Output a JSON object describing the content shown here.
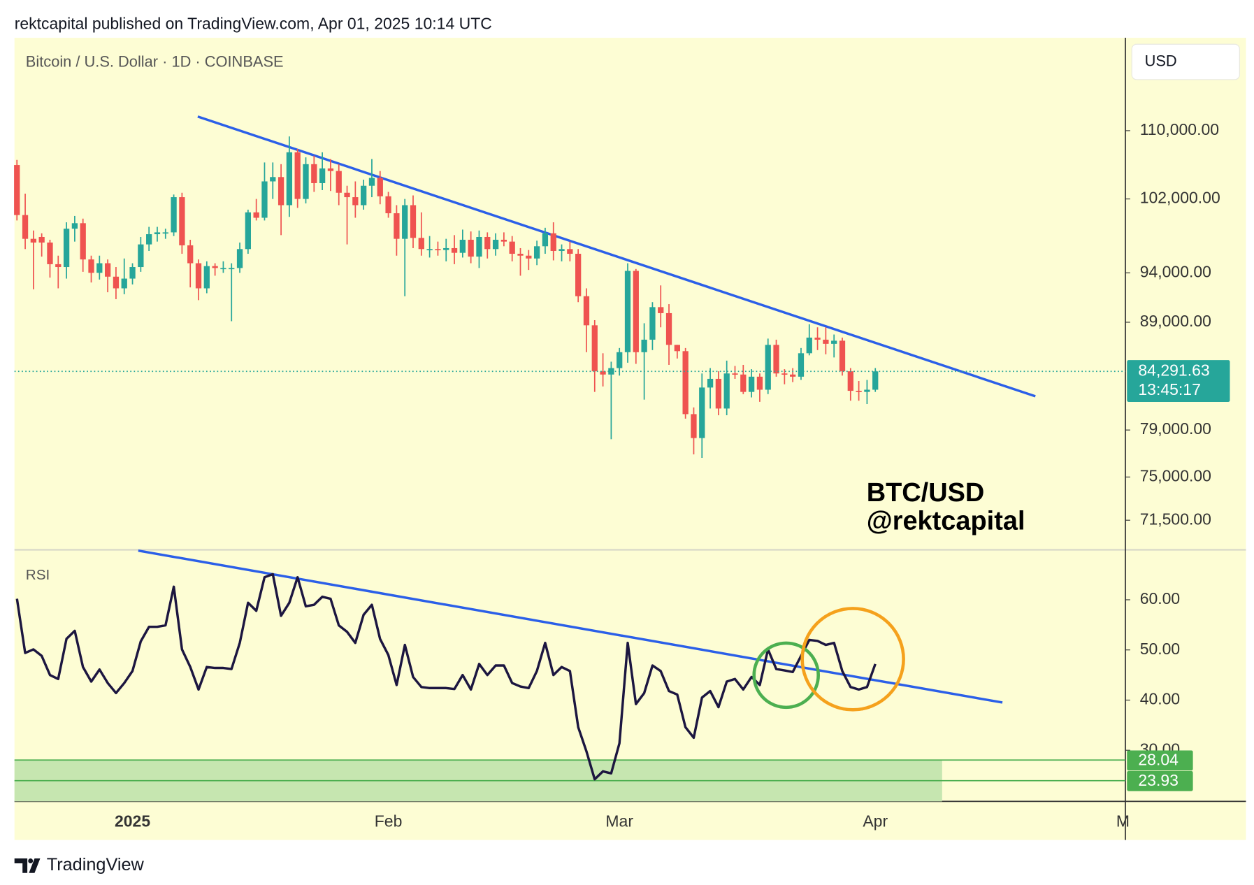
{
  "header": {
    "text": "rektcapital published on TradingView.com, Apr 01, 2025 10:14 UTC"
  },
  "chart_data": [
    {
      "type": "candlestick",
      "title": "Bitcoin / U.S. Dollar · 1D · COINBASE",
      "currency": "USD",
      "annotations": [
        "BTC/USD",
        "@rektcapital"
      ],
      "log_scale": true,
      "up_color": "#26a69a",
      "down_color": "#ef5350",
      "open": [
        105900,
        100200,
        97600,
        97800,
        97200,
        94900,
        94600,
        98700,
        99300,
        95400,
        94000,
        95000,
        93600,
        92400,
        93400,
        94600,
        97000,
        98100,
        98300,
        98300,
        102200,
        96900,
        95000,
        92400,
        94700,
        94500,
        94500,
        94500,
        96500,
        100500,
        99900,
        104000,
        104500,
        101300,
        107400,
        102000,
        106000,
        103800,
        105500,
        105200,
        102700,
        102200,
        101300,
        103500,
        104400,
        102300,
        100400,
        97600,
        101300,
        97700,
        96500,
        96500,
        96400,
        96600,
        96100,
        97500,
        95700,
        97800,
        96500,
        97500,
        97300,
        96000,
        95800,
        95500,
        96800,
        98200,
        96300,
        96500,
        96000,
        91600,
        88700,
        84300,
        84000,
        84600,
        86100,
        94200,
        86100,
        87300,
        90500,
        89900,
        86800,
        86200,
        80400,
        78300,
        82800,
        83600,
        80900,
        84100,
        84000,
        82400,
        83800,
        82600,
        86800,
        84100,
        84000,
        83800,
        86000,
        87500,
        87300,
        86900,
        87200,
        84300,
        82500,
        82400,
        82600
      ],
      "high": [
        106500,
        102600,
        98500,
        98200,
        97500,
        95800,
        99400,
        100100,
        99800,
        95800,
        95800,
        95400,
        94600,
        95500,
        95000,
        97800,
        98900,
        98900,
        98700,
        102500,
        102700,
        97500,
        95400,
        95200,
        95000,
        95200,
        95000,
        97200,
        100800,
        102000,
        106200,
        106200,
        106000,
        109300,
        107800,
        106800,
        107000,
        107400,
        106600,
        106000,
        103500,
        104000,
        104200,
        106600,
        105200,
        102800,
        101300,
        102000,
        102400,
        100500,
        97900,
        97300,
        97600,
        98000,
        98600,
        98400,
        98500,
        98300,
        98200,
        98300,
        97900,
        96600,
        96400,
        97400,
        98800,
        99400,
        97000,
        97300,
        96500,
        92400,
        89200,
        86000,
        85200,
        86500,
        95000,
        94400,
        88900,
        91000,
        92700,
        90800,
        86800,
        86500,
        81000,
        84100,
        84600,
        84300,
        85300,
        84800,
        84900,
        84500,
        84100,
        87400,
        87300,
        84500,
        84600,
        86500,
        88800,
        88500,
        88500,
        87800,
        87500,
        84600,
        83400,
        83500,
        84600
      ],
      "low": [
        99600,
        96500,
        92300,
        95700,
        93500,
        92400,
        93400,
        97300,
        94100,
        93000,
        93300,
        92000,
        91300,
        91800,
        92800,
        94100,
        96300,
        97300,
        97600,
        97900,
        96000,
        92500,
        91200,
        91900,
        93700,
        94000,
        89100,
        94000,
        96000,
        99600,
        99600,
        102000,
        98000,
        100000,
        101000,
        101500,
        102800,
        103000,
        102900,
        101300,
        97000,
        99900,
        100800,
        102200,
        101400,
        99900,
        95800,
        91600,
        96600,
        95800,
        95600,
        95800,
        95200,
        94900,
        95600,
        95000,
        94500,
        95500,
        95800,
        96800,
        95200,
        93700,
        94300,
        94800,
        96000,
        95300,
        95200,
        95200,
        91000,
        86100,
        82400,
        82900,
        78200,
        83900,
        85100,
        85000,
        81700,
        86300,
        88500,
        84900,
        85500,
        80000,
        76900,
        76600,
        80900,
        80300,
        80300,
        83600,
        82200,
        81900,
        81500,
        82200,
        83800,
        83100,
        83300,
        83500,
        85800,
        86300,
        85900,
        85600,
        83900,
        81600,
        81600,
        81300,
        82400
      ],
      "close": [
        100200,
        97600,
        97200,
        97200,
        94900,
        94600,
        98700,
        99300,
        95400,
        94000,
        95000,
        93600,
        92400,
        93400,
        94600,
        97000,
        98100,
        98300,
        98300,
        102200,
        96900,
        95000,
        92400,
        94700,
        94500,
        94500,
        94500,
        96500,
        100500,
        99900,
        104000,
        104500,
        101300,
        107400,
        102000,
        106000,
        103800,
        105500,
        105200,
        102700,
        102200,
        101300,
        103500,
        104400,
        102300,
        100400,
        97600,
        101300,
        97700,
        96500,
        96500,
        96400,
        96600,
        96100,
        97500,
        95700,
        97800,
        96500,
        97500,
        97300,
        96000,
        95800,
        95500,
        96800,
        98200,
        96300,
        96500,
        96000,
        91600,
        88700,
        84300,
        84000,
        84600,
        86100,
        94200,
        86100,
        87300,
        90500,
        89900,
        86800,
        86200,
        80400,
        78300,
        82800,
        83600,
        80900,
        84100,
        84000,
        82400,
        83800,
        82600,
        86800,
        84100,
        84000,
        83800,
        86000,
        87500,
        87300,
        86900,
        87200,
        84300,
        82500,
        82400,
        82600,
        84291.63
      ],
      "xlim": [
        -0.3,
        134.3
      ],
      "ylim": [
        69260,
        121900
      ],
      "yticks": [
        {
          "value": 110000,
          "label": "110,000.00"
        },
        {
          "value": 102000,
          "label": "102,000.00"
        },
        {
          "value": 94000,
          "label": "94,000.00"
        },
        {
          "value": 89000,
          "label": "89,000.00"
        },
        {
          "value": 79000,
          "label": "79,000.00"
        },
        {
          "value": 75000,
          "label": "75,000.00"
        },
        {
          "value": 71500,
          "label": "71,500.00"
        }
      ],
      "last_price": {
        "value": 84291.63,
        "label": "84,291.63"
      },
      "countdown": "13:45:17"
    },
    {
      "type": "line",
      "title": "RSI",
      "color": "#1c1640",
      "values": [
        60.2,
        49.4,
        50.1,
        48.8,
        45.0,
        44.2,
        52.2,
        53.8,
        46.6,
        43.7,
        46.1,
        43.4,
        41.4,
        43.4,
        45.8,
        51.7,
        54.6,
        54.6,
        54.9,
        62.6,
        50.1,
        46.6,
        42.1,
        46.6,
        46.4,
        46.4,
        46.2,
        51.4,
        59.4,
        57.8,
        64.5,
        65.1,
        56.8,
        59.4,
        64.5,
        58.7,
        59.0,
        60.6,
        60.2,
        54.9,
        53.6,
        51.4,
        57.0,
        59.0,
        52.2,
        49.0,
        43.0,
        51.0,
        44.6,
        42.6,
        42.4,
        42.4,
        42.4,
        42.2,
        45.0,
        42.1,
        47.2,
        45.0,
        46.9,
        46.9,
        43.4,
        42.7,
        42.4,
        45.8,
        51.4,
        45.0,
        46.6,
        45.8,
        34.6,
        29.8,
        24.2,
        25.8,
        25.4,
        31.4,
        51.4,
        39.2,
        41.4,
        46.9,
        45.8,
        41.8,
        41.1,
        34.6,
        32.5,
        40.5,
        41.8,
        38.6,
        43.7,
        44.2,
        42.1,
        44.6,
        43.0,
        50.1,
        46.2,
        45.9,
        45.6,
        48.8,
        52.0,
        51.8,
        51.0,
        51.4,
        45.8,
        42.6,
        42.1,
        42.6,
        47.2
      ],
      "xlim": [
        -0.3,
        134.3
      ],
      "ylim": [
        19.8,
        69.8
      ],
      "yticks": [
        {
          "value": 30,
          "label": "30.00"
        },
        {
          "value": 40,
          "label": "40.00"
        },
        {
          "value": 50,
          "label": "50.00"
        },
        {
          "value": 60,
          "label": "60.00"
        }
      ],
      "xticks": [
        {
          "value": 14,
          "label": "2025"
        },
        {
          "value": 45,
          "label": "Feb"
        },
        {
          "value": 73,
          "label": "Mar"
        },
        {
          "value": 104,
          "label": "Apr"
        },
        {
          "value": 134,
          "label": "M"
        }
      ],
      "zone": {
        "levels": [
          28.04,
          23.93
        ],
        "color": "#4caf50"
      }
    }
  ],
  "footer": {
    "brand": "TradingView"
  }
}
